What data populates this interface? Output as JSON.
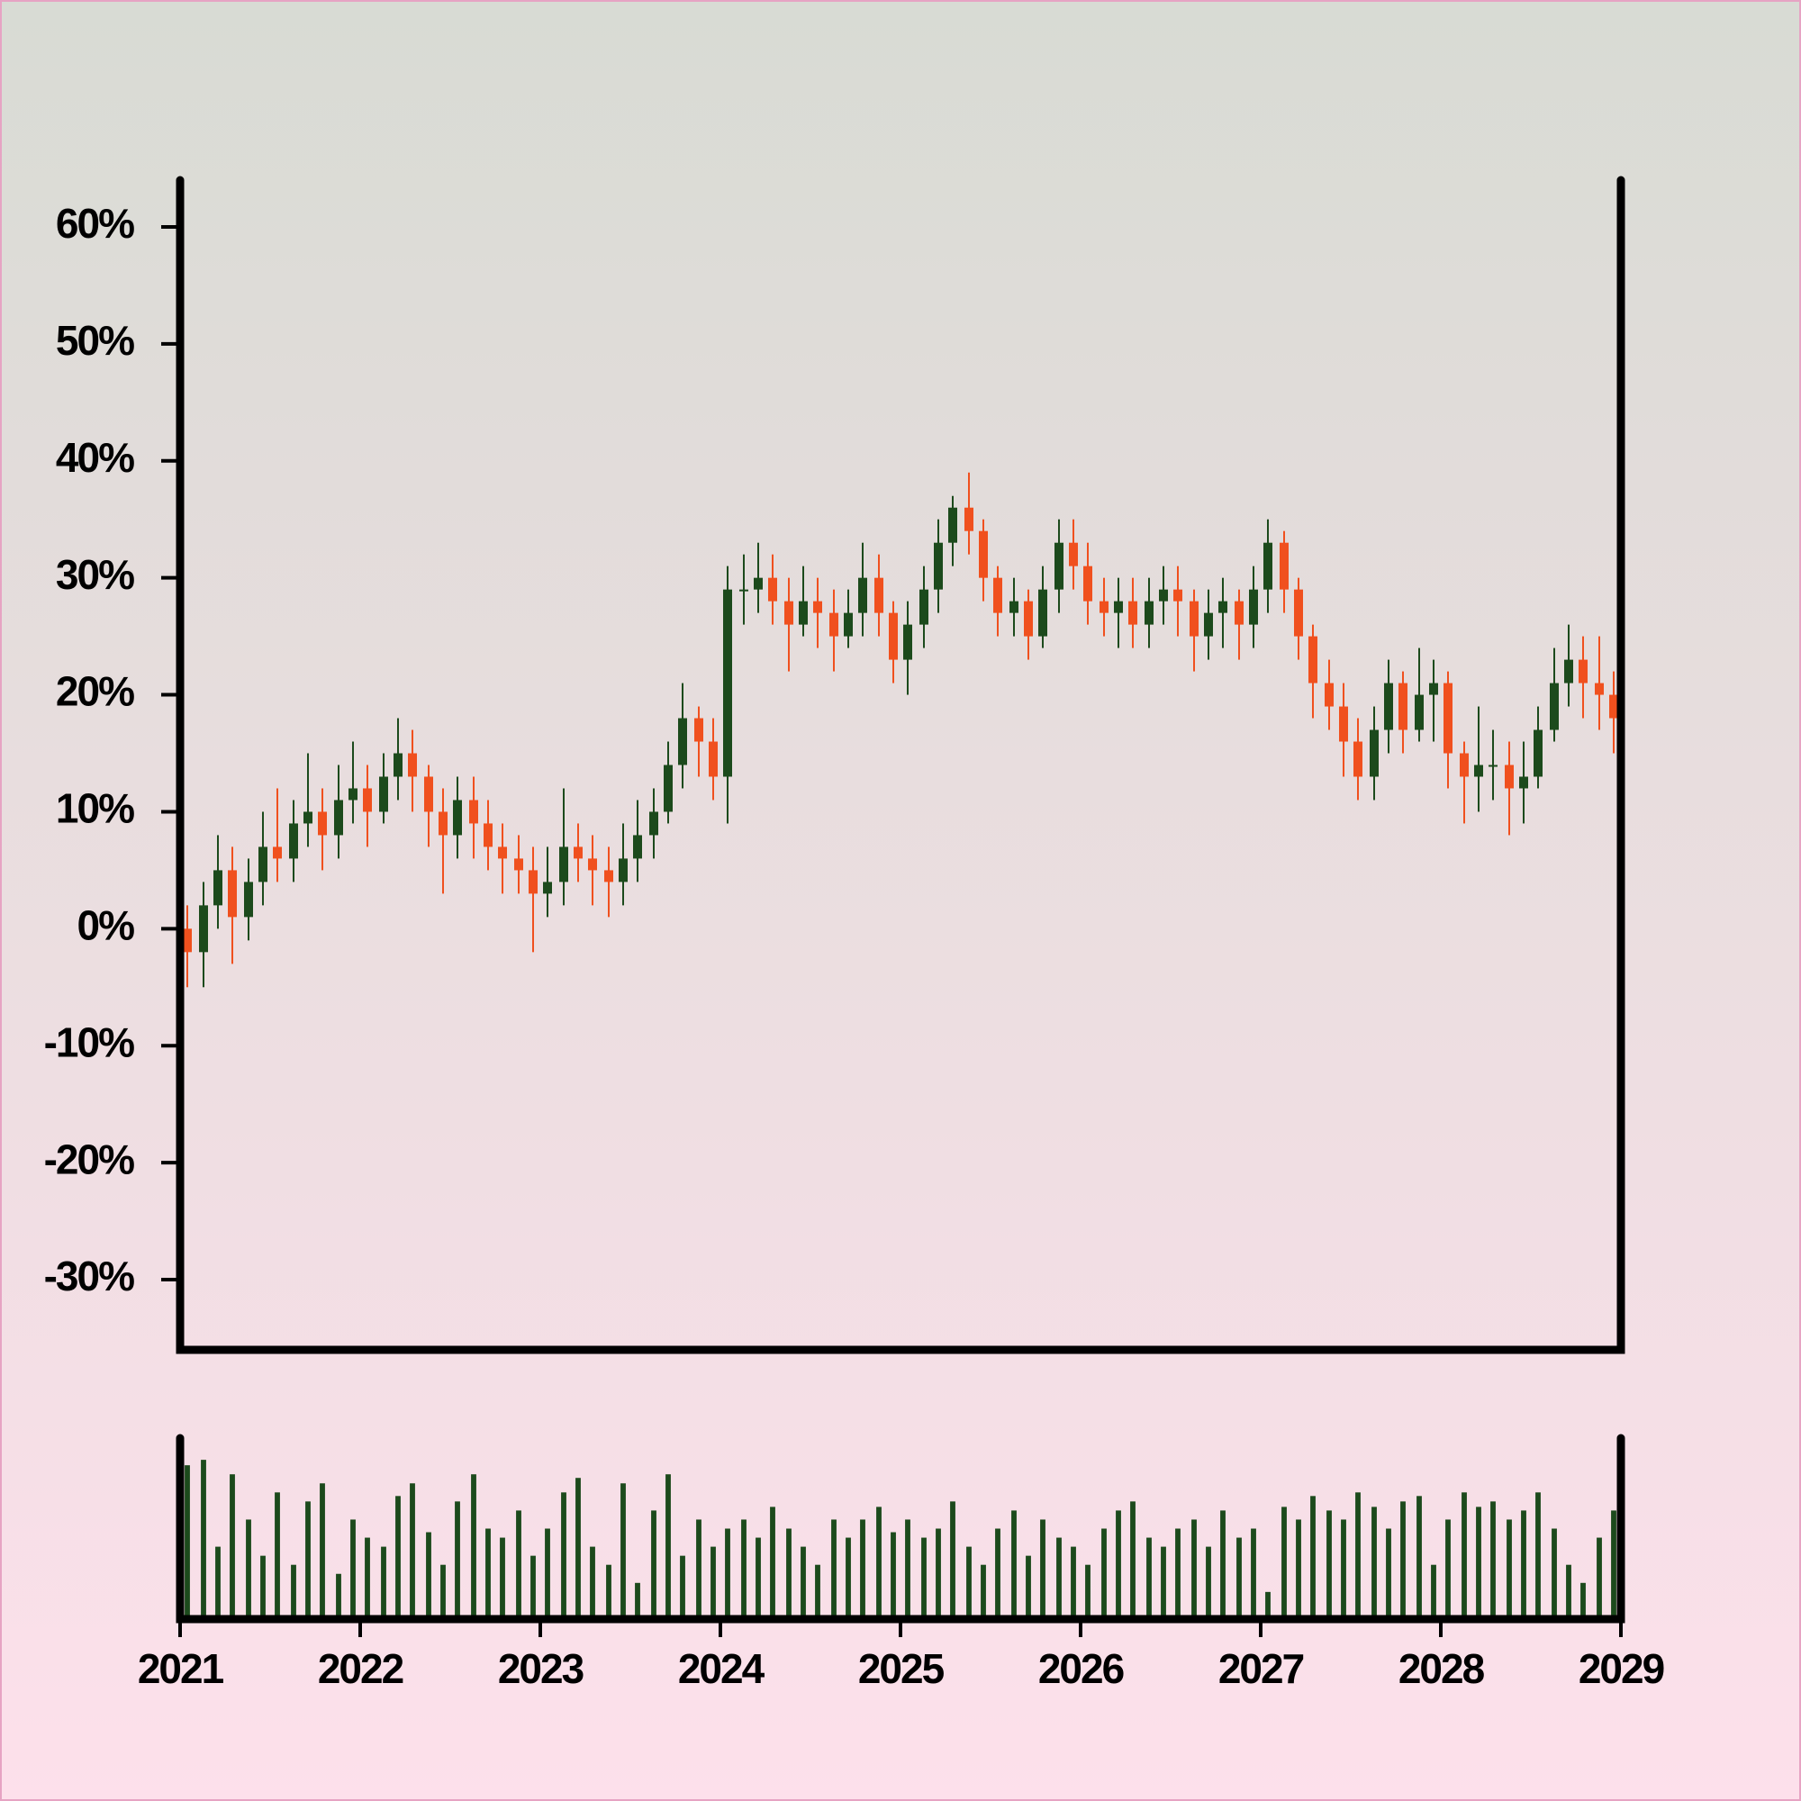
{
  "chart_data": [
    {
      "type": "candlestick",
      "x": [
        2021.04,
        2021.13,
        2021.21,
        2021.29,
        2021.38,
        2021.46,
        2021.54,
        2021.63,
        2021.71,
        2021.79,
        2021.88,
        2021.96,
        2022.04,
        2022.13,
        2022.21,
        2022.29,
        2022.38,
        2022.46,
        2022.54,
        2022.63,
        2022.71,
        2022.79,
        2022.88,
        2022.96,
        2023.04,
        2023.13,
        2023.21,
        2023.29,
        2023.38,
        2023.46,
        2023.54,
        2023.63,
        2023.71,
        2023.79,
        2023.88,
        2023.96,
        2024.04,
        2024.13,
        2024.21,
        2024.29,
        2024.38,
        2024.46,
        2024.54,
        2024.63,
        2024.71,
        2024.79,
        2024.88,
        2024.96,
        2025.04,
        2025.13,
        2025.21,
        2025.29,
        2025.38,
        2025.46,
        2025.54,
        2025.63,
        2025.71,
        2025.79,
        2025.88,
        2025.96,
        2026.04,
        2026.13,
        2026.21,
        2026.29,
        2026.38,
        2026.46,
        2026.54,
        2026.63,
        2026.71,
        2026.79,
        2026.88,
        2026.96,
        2027.04,
        2027.13,
        2027.21,
        2027.29,
        2027.38,
        2027.46,
        2027.54,
        2027.63,
        2027.71,
        2027.79,
        2027.88,
        2027.96,
        2028.04,
        2028.13,
        2028.21,
        2028.29,
        2028.38,
        2028.46,
        2028.54,
        2028.63,
        2028.71,
        2028.79,
        2028.88,
        2028.96
      ],
      "open": [
        0,
        -2,
        2,
        5,
        1,
        4,
        7,
        6,
        9,
        10,
        8,
        11,
        12,
        10,
        13,
        15,
        13,
        10,
        8,
        11,
        9,
        7,
        6,
        5,
        3,
        4,
        7,
        6,
        5,
        4,
        6,
        8,
        10,
        14,
        18,
        16,
        13,
        29,
        29,
        30,
        28,
        26,
        28,
        27,
        25,
        27,
        30,
        27,
        23,
        26,
        29,
        33,
        36,
        34,
        30,
        27,
        28,
        25,
        29,
        33,
        31,
        28,
        27,
        28,
        26,
        28,
        29,
        28,
        25,
        27,
        28,
        26,
        29,
        33,
        29,
        25,
        21,
        19,
        16,
        13,
        17,
        21,
        17,
        20,
        21,
        15,
        13,
        14,
        14,
        12,
        13,
        17,
        21,
        23,
        21,
        20
      ],
      "high": [
        2,
        4,
        8,
        7,
        6,
        10,
        12,
        11,
        15,
        12,
        14,
        16,
        14,
        15,
        18,
        17,
        14,
        12,
        13,
        13,
        11,
        9,
        8,
        7,
        7,
        12,
        9,
        8,
        7,
        9,
        11,
        12,
        16,
        21,
        19,
        18,
        31,
        32,
        33,
        32,
        30,
        31,
        30,
        29,
        29,
        33,
        32,
        28,
        28,
        31,
        35,
        37,
        39,
        35,
        31,
        30,
        29,
        31,
        35,
        35,
        33,
        30,
        30,
        30,
        30,
        31,
        31,
        29,
        29,
        30,
        29,
        31,
        35,
        34,
        30,
        26,
        23,
        21,
        18,
        19,
        23,
        22,
        24,
        23,
        22,
        16,
        19,
        17,
        16,
        16,
        19,
        24,
        26,
        25,
        25,
        22
      ],
      "low": [
        -5,
        -5,
        0,
        -3,
        -1,
        2,
        4,
        4,
        7,
        5,
        6,
        9,
        7,
        9,
        11,
        10,
        7,
        3,
        6,
        6,
        5,
        3,
        3,
        -2,
        1,
        2,
        4,
        2,
        1,
        2,
        4,
        6,
        9,
        12,
        13,
        11,
        9,
        26,
        27,
        26,
        22,
        25,
        24,
        22,
        24,
        25,
        25,
        21,
        20,
        24,
        27,
        31,
        32,
        28,
        25,
        25,
        23,
        24,
        27,
        29,
        26,
        25,
        24,
        24,
        24,
        26,
        25,
        22,
        23,
        24,
        23,
        24,
        27,
        27,
        23,
        18,
        17,
        13,
        11,
        11,
        15,
        15,
        16,
        16,
        12,
        9,
        10,
        11,
        8,
        9,
        12,
        16,
        19,
        18,
        17,
        15
      ],
      "close": [
        -2,
        2,
        5,
        1,
        4,
        7,
        6,
        9,
        10,
        8,
        11,
        12,
        10,
        13,
        15,
        13,
        10,
        8,
        11,
        9,
        7,
        6,
        5,
        3,
        4,
        7,
        6,
        5,
        4,
        6,
        8,
        10,
        14,
        18,
        16,
        13,
        29,
        29,
        30,
        28,
        26,
        28,
        27,
        25,
        27,
        30,
        27,
        23,
        26,
        29,
        33,
        36,
        34,
        30,
        27,
        28,
        25,
        29,
        33,
        31,
        28,
        27,
        28,
        26,
        28,
        29,
        28,
        25,
        27,
        28,
        26,
        29,
        33,
        29,
        25,
        21,
        19,
        16,
        13,
        17,
        21,
        17,
        20,
        21,
        15,
        13,
        14,
        14,
        12,
        13,
        17,
        21,
        23,
        21,
        20,
        18
      ],
      "up_color": "#1c4a1c",
      "down_color": "#f0501e",
      "xlim": [
        2021,
        2029
      ],
      "ylim": [
        -36,
        64
      ],
      "yticks": [
        {
          "value": -30,
          "label": "-30%"
        },
        {
          "value": -20,
          "label": "-20%"
        },
        {
          "value": -10,
          "label": "-10%"
        },
        {
          "value": 0,
          "label": "0%"
        },
        {
          "value": 10,
          "label": "10%"
        },
        {
          "value": 20,
          "label": "20%"
        },
        {
          "value": 30,
          "label": "30%"
        },
        {
          "value": 40,
          "label": "40%"
        },
        {
          "value": 50,
          "label": "50%"
        },
        {
          "value": 60,
          "label": "60%"
        }
      ]
    },
    {
      "type": "bar",
      "x": [
        2021.04,
        2021.13,
        2021.21,
        2021.29,
        2021.38,
        2021.46,
        2021.54,
        2021.63,
        2021.71,
        2021.79,
        2021.88,
        2021.96,
        2022.04,
        2022.13,
        2022.21,
        2022.29,
        2022.38,
        2022.46,
        2022.54,
        2022.63,
        2022.71,
        2022.79,
        2022.88,
        2022.96,
        2023.04,
        2023.13,
        2023.21,
        2023.29,
        2023.38,
        2023.46,
        2023.54,
        2023.63,
        2023.71,
        2023.79,
        2023.88,
        2023.96,
        2024.04,
        2024.13,
        2024.21,
        2024.29,
        2024.38,
        2024.46,
        2024.54,
        2024.63,
        2024.71,
        2024.79,
        2024.88,
        2024.96,
        2025.04,
        2025.13,
        2025.21,
        2025.29,
        2025.38,
        2025.46,
        2025.54,
        2025.63,
        2025.71,
        2025.79,
        2025.88,
        2025.96,
        2026.04,
        2026.13,
        2026.21,
        2026.29,
        2026.38,
        2026.46,
        2026.54,
        2026.63,
        2026.71,
        2026.79,
        2026.88,
        2026.96,
        2027.04,
        2027.13,
        2027.21,
        2027.29,
        2027.38,
        2027.46,
        2027.54,
        2027.63,
        2027.71,
        2027.79,
        2027.88,
        2027.96,
        2028.04,
        2028.13,
        2028.21,
        2028.29,
        2028.38,
        2028.46,
        2028.54,
        2028.63,
        2028.71,
        2028.79,
        2028.88,
        2028.96
      ],
      "values": [
        85,
        88,
        40,
        80,
        55,
        35,
        70,
        30,
        65,
        75,
        25,
        55,
        45,
        40,
        68,
        75,
        48,
        30,
        65,
        80,
        50,
        45,
        60,
        35,
        50,
        70,
        78,
        40,
        30,
        75,
        20,
        60,
        80,
        35,
        55,
        40,
        50,
        55,
        45,
        62,
        50,
        40,
        30,
        55,
        45,
        55,
        62,
        48,
        55,
        45,
        50,
        65,
        40,
        30,
        50,
        60,
        35,
        55,
        45,
        40,
        30,
        50,
        60,
        65,
        45,
        40,
        50,
        55,
        40,
        60,
        45,
        50,
        15,
        62,
        55,
        68,
        60,
        55,
        70,
        62,
        50,
        65,
        68,
        30,
        55,
        70,
        62,
        65,
        55,
        60,
        70,
        50,
        30,
        20,
        45,
        60
      ],
      "color": "#1c4a1c",
      "xlim": [
        2021,
        2029
      ],
      "ylim": [
        0,
        100
      ],
      "xticks": [
        2021,
        2022,
        2023,
        2024,
        2025,
        2026,
        2027,
        2028,
        2029
      ]
    }
  ]
}
